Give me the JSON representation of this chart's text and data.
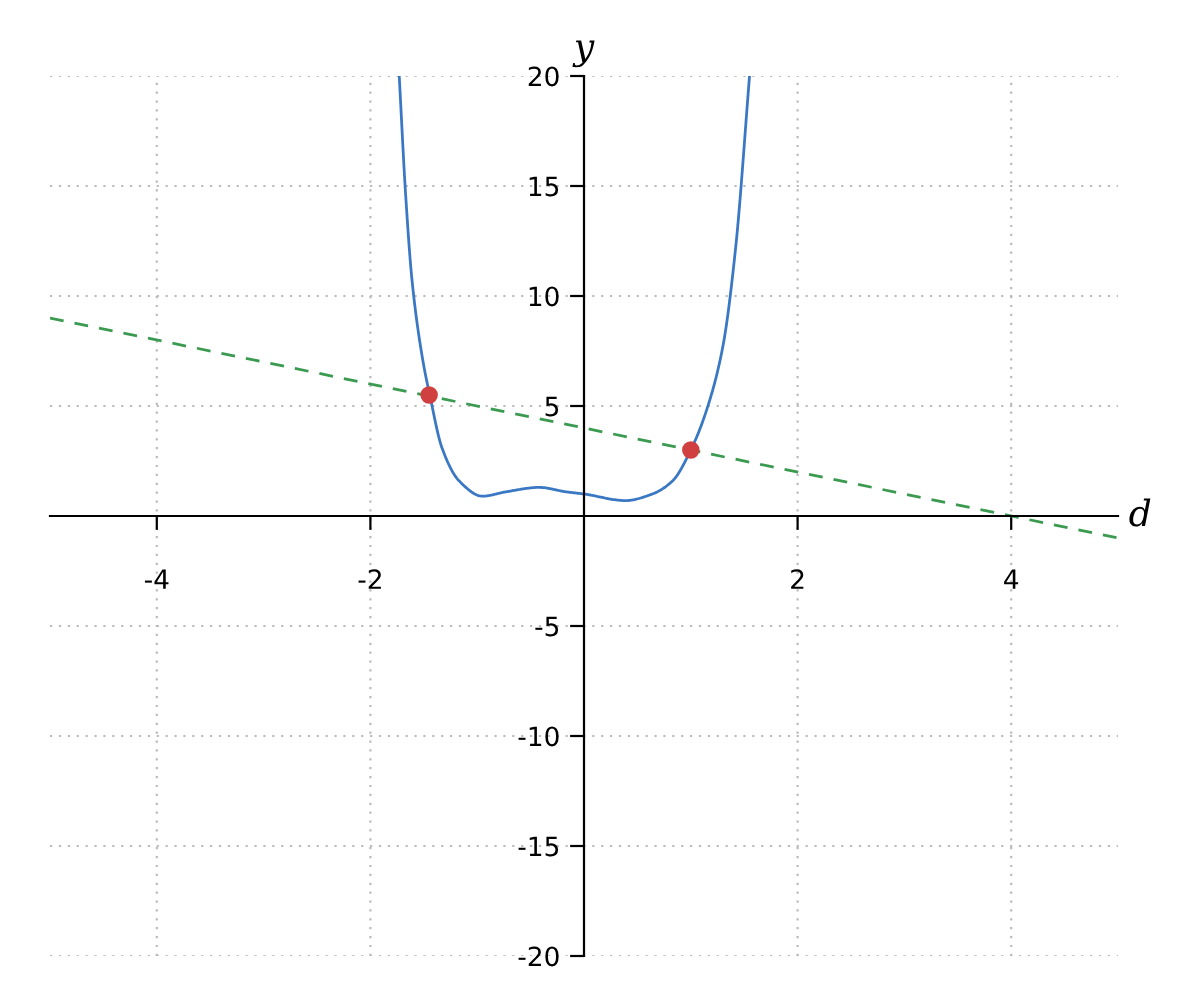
{
  "chart_data": {
    "type": "line",
    "xlabel": "d",
    "ylabel": "y",
    "xlim": [
      -5,
      5
    ],
    "ylim": [
      -20,
      20
    ],
    "xticks": [
      -4,
      -2,
      2,
      4
    ],
    "yticks": [
      -20,
      -15,
      -10,
      -5,
      5,
      10,
      15,
      20
    ],
    "grid": true,
    "series": [
      {
        "color": "#3a78c4",
        "line_style": "solid",
        "x": [
          -1.73,
          -1.67,
          -1.61,
          -1.51,
          -1.44,
          -1.33,
          -1.17,
          -0.95,
          -0.73,
          -0.42,
          -0.17,
          0,
          0.39,
          0.64,
          0.83,
          1.0,
          1.14,
          1.3,
          1.42,
          1.55
        ],
        "values": [
          20,
          14.6,
          10.7,
          7.1,
          5.4,
          3.1,
          1.6,
          0.9,
          1.1,
          1.3,
          1.1,
          1.0,
          0.7,
          1.0,
          1.6,
          3.0,
          4.7,
          7.7,
          12.2,
          20
        ]
      },
      {
        "color": "#3a9a50",
        "line_style": "dashed",
        "x": [
          -5,
          5
        ],
        "values": [
          9,
          -1
        ]
      },
      {
        "type": "scatter",
        "color": "#d04040",
        "marker": "circle",
        "x": [
          -1.45,
          1.0
        ],
        "values": [
          5.5,
          3.0
        ]
      }
    ]
  }
}
